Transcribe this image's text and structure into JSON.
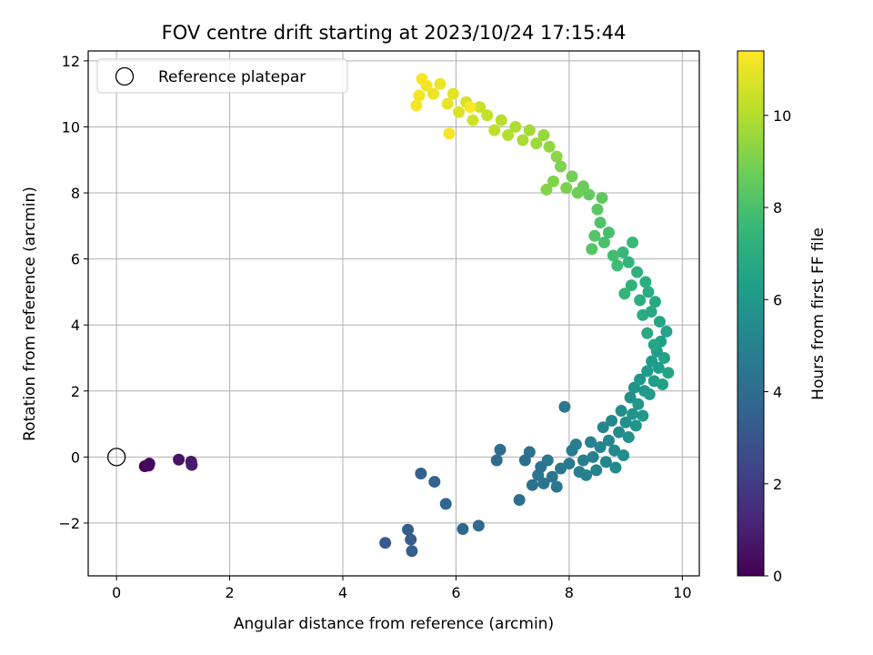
{
  "chart_data": {
    "type": "scatter",
    "title": "FOV centre drift starting at 2023/10/24 17:15:44",
    "xlabel": "Angular distance from reference (arcmin)",
    "ylabel": "Rotation from reference (arcmin)",
    "xlim": [
      -0.5,
      10.3
    ],
    "ylim": [
      -3.6,
      12.3
    ],
    "xticks": [
      0,
      2,
      4,
      6,
      8,
      10
    ],
    "yticks": [
      -2,
      0,
      2,
      4,
      6,
      8,
      10,
      12
    ],
    "grid": true,
    "legend": {
      "placement": "top-left",
      "entries": [
        "Reference platepar"
      ]
    },
    "reference_point": {
      "x": 0,
      "y": 0
    },
    "colorbar": {
      "label": "Hours from first FF file",
      "range": [
        0,
        11.4
      ],
      "ticks": [
        0,
        2,
        4,
        6,
        8,
        10
      ],
      "colormap": [
        "#440154",
        "#482878",
        "#3e4989",
        "#31688e",
        "#26828e",
        "#1f9e89",
        "#35b779",
        "#6ece58",
        "#b5de2b",
        "#fde725"
      ]
    },
    "points": [
      {
        "x": 0.5,
        "y": -0.28,
        "t": 0.1
      },
      {
        "x": 0.58,
        "y": -0.2,
        "t": 0.2
      },
      {
        "x": 0.57,
        "y": -0.26,
        "t": 0.3
      },
      {
        "x": 1.1,
        "y": -0.08,
        "t": 0.6
      },
      {
        "x": 1.32,
        "y": -0.14,
        "t": 0.8
      },
      {
        "x": 1.33,
        "y": -0.24,
        "t": 0.9
      },
      {
        "x": 4.75,
        "y": -2.6,
        "t": 3.2
      },
      {
        "x": 5.15,
        "y": -2.2,
        "t": 3.3
      },
      {
        "x": 5.2,
        "y": -2.5,
        "t": 3.35
      },
      {
        "x": 5.22,
        "y": -2.85,
        "t": 3.4
      },
      {
        "x": 5.38,
        "y": -0.5,
        "t": 3.5
      },
      {
        "x": 5.62,
        "y": -0.75,
        "t": 3.6
      },
      {
        "x": 5.82,
        "y": -1.42,
        "t": 3.7
      },
      {
        "x": 6.12,
        "y": -2.18,
        "t": 3.8
      },
      {
        "x": 6.4,
        "y": -2.08,
        "t": 3.9
      },
      {
        "x": 6.72,
        "y": -0.1,
        "t": 4.0
      },
      {
        "x": 6.78,
        "y": 0.22,
        "t": 4.05
      },
      {
        "x": 7.12,
        "y": -1.3,
        "t": 4.1
      },
      {
        "x": 7.22,
        "y": -0.1,
        "t": 4.15
      },
      {
        "x": 7.3,
        "y": 0.15,
        "t": 4.2
      },
      {
        "x": 7.35,
        "y": -0.85,
        "t": 4.25
      },
      {
        "x": 7.45,
        "y": -0.55,
        "t": 4.3
      },
      {
        "x": 7.5,
        "y": -0.3,
        "t": 4.35
      },
      {
        "x": 7.55,
        "y": -0.8,
        "t": 4.4
      },
      {
        "x": 7.62,
        "y": -0.1,
        "t": 4.45
      },
      {
        "x": 7.7,
        "y": -0.6,
        "t": 4.5
      },
      {
        "x": 7.78,
        "y": -0.9,
        "t": 4.55
      },
      {
        "x": 7.85,
        "y": -0.35,
        "t": 4.6
      },
      {
        "x": 7.92,
        "y": 1.52,
        "t": 4.65
      },
      {
        "x": 8.0,
        "y": -0.2,
        "t": 4.7
      },
      {
        "x": 8.05,
        "y": 0.2,
        "t": 4.75
      },
      {
        "x": 8.12,
        "y": 0.38,
        "t": 4.8
      },
      {
        "x": 8.18,
        "y": -0.45,
        "t": 4.85
      },
      {
        "x": 8.25,
        "y": -0.1,
        "t": 4.9
      },
      {
        "x": 8.3,
        "y": -0.55,
        "t": 4.95
      },
      {
        "x": 8.38,
        "y": 0.45,
        "t": 5.0
      },
      {
        "x": 8.42,
        "y": 0.0,
        "t": 5.05
      },
      {
        "x": 8.48,
        "y": -0.4,
        "t": 5.1
      },
      {
        "x": 8.55,
        "y": 0.3,
        "t": 5.15
      },
      {
        "x": 8.6,
        "y": 0.9,
        "t": 5.2
      },
      {
        "x": 8.65,
        "y": -0.15,
        "t": 5.25
      },
      {
        "x": 8.7,
        "y": 0.5,
        "t": 5.3
      },
      {
        "x": 8.75,
        "y": 1.1,
        "t": 5.35
      },
      {
        "x": 8.8,
        "y": 0.2,
        "t": 5.4
      },
      {
        "x": 8.82,
        "y": -0.32,
        "t": 5.45
      },
      {
        "x": 8.88,
        "y": 0.75,
        "t": 5.5
      },
      {
        "x": 8.92,
        "y": 1.4,
        "t": 5.55
      },
      {
        "x": 8.96,
        "y": 0.05,
        "t": 5.6
      },
      {
        "x": 9.0,
        "y": 1.05,
        "t": 5.65
      },
      {
        "x": 9.05,
        "y": 0.6,
        "t": 5.7
      },
      {
        "x": 9.08,
        "y": 1.8,
        "t": 5.75
      },
      {
        "x": 9.12,
        "y": 1.3,
        "t": 5.8
      },
      {
        "x": 9.15,
        "y": 2.1,
        "t": 5.85
      },
      {
        "x": 9.18,
        "y": 0.95,
        "t": 5.9
      },
      {
        "x": 9.22,
        "y": 1.6,
        "t": 5.95
      },
      {
        "x": 9.25,
        "y": 2.35,
        "t": 6.0
      },
      {
        "x": 9.3,
        "y": 1.25,
        "t": 6.05
      },
      {
        "x": 9.33,
        "y": 2.0,
        "t": 6.1
      },
      {
        "x": 9.38,
        "y": 2.6,
        "t": 6.15
      },
      {
        "x": 9.42,
        "y": 1.9,
        "t": 6.2
      },
      {
        "x": 9.46,
        "y": 2.9,
        "t": 6.25
      },
      {
        "x": 9.5,
        "y": 2.3,
        "t": 6.3
      },
      {
        "x": 9.55,
        "y": 3.2,
        "t": 6.35
      },
      {
        "x": 9.58,
        "y": 2.7,
        "t": 6.4
      },
      {
        "x": 9.62,
        "y": 3.5,
        "t": 6.45
      },
      {
        "x": 9.65,
        "y": 2.2,
        "t": 6.5
      },
      {
        "x": 9.68,
        "y": 3.0,
        "t": 6.55
      },
      {
        "x": 9.72,
        "y": 3.8,
        "t": 6.6
      },
      {
        "x": 9.75,
        "y": 2.55,
        "t": 6.65
      },
      {
        "x": 9.6,
        "y": 4.1,
        "t": 6.7
      },
      {
        "x": 9.5,
        "y": 3.4,
        "t": 6.75
      },
      {
        "x": 9.45,
        "y": 4.4,
        "t": 6.8
      },
      {
        "x": 9.38,
        "y": 3.75,
        "t": 6.85
      },
      {
        "x": 9.52,
        "y": 4.7,
        "t": 6.9
      },
      {
        "x": 9.4,
        "y": 5.0,
        "t": 7.0
      },
      {
        "x": 9.3,
        "y": 4.3,
        "t": 7.05
      },
      {
        "x": 9.35,
        "y": 5.3,
        "t": 7.1
      },
      {
        "x": 9.25,
        "y": 4.75,
        "t": 7.15
      },
      {
        "x": 9.2,
        "y": 5.6,
        "t": 7.25
      },
      {
        "x": 9.1,
        "y": 5.2,
        "t": 7.35
      },
      {
        "x": 9.05,
        "y": 5.9,
        "t": 7.45
      },
      {
        "x": 8.98,
        "y": 4.95,
        "t": 7.5
      },
      {
        "x": 8.95,
        "y": 6.2,
        "t": 7.6
      },
      {
        "x": 9.12,
        "y": 6.5,
        "t": 7.7
      },
      {
        "x": 8.85,
        "y": 5.8,
        "t": 7.8
      },
      {
        "x": 8.78,
        "y": 6.1,
        "t": 7.9
      },
      {
        "x": 8.7,
        "y": 6.8,
        "t": 8.0
      },
      {
        "x": 8.62,
        "y": 6.5,
        "t": 8.1
      },
      {
        "x": 8.55,
        "y": 7.1,
        "t": 8.2
      },
      {
        "x": 8.45,
        "y": 6.7,
        "t": 8.3
      },
      {
        "x": 8.4,
        "y": 6.3,
        "t": 8.35
      },
      {
        "x": 8.5,
        "y": 7.5,
        "t": 8.45
      },
      {
        "x": 8.58,
        "y": 7.85,
        "t": 8.55
      },
      {
        "x": 8.35,
        "y": 7.95,
        "t": 8.65
      },
      {
        "x": 8.25,
        "y": 8.2,
        "t": 8.75
      },
      {
        "x": 8.15,
        "y": 8.0,
        "t": 8.85
      },
      {
        "x": 8.05,
        "y": 8.5,
        "t": 8.95
      },
      {
        "x": 7.95,
        "y": 8.15,
        "t": 9.05
      },
      {
        "x": 7.85,
        "y": 8.8,
        "t": 9.15
      },
      {
        "x": 7.72,
        "y": 8.35,
        "t": 9.25
      },
      {
        "x": 7.6,
        "y": 8.1,
        "t": 9.3
      },
      {
        "x": 7.78,
        "y": 9.1,
        "t": 9.4
      },
      {
        "x": 7.65,
        "y": 9.4,
        "t": 9.5
      },
      {
        "x": 7.55,
        "y": 9.75,
        "t": 9.6
      },
      {
        "x": 7.42,
        "y": 9.5,
        "t": 9.7
      },
      {
        "x": 7.3,
        "y": 9.9,
        "t": 9.8
      },
      {
        "x": 7.18,
        "y": 9.6,
        "t": 9.9
      },
      {
        "x": 7.05,
        "y": 10.0,
        "t": 10.0
      },
      {
        "x": 6.92,
        "y": 9.75,
        "t": 10.1
      },
      {
        "x": 6.8,
        "y": 10.2,
        "t": 10.2
      },
      {
        "x": 6.68,
        "y": 9.9,
        "t": 10.3
      },
      {
        "x": 6.55,
        "y": 10.35,
        "t": 10.4
      },
      {
        "x": 6.42,
        "y": 10.6,
        "t": 10.5
      },
      {
        "x": 6.3,
        "y": 10.2,
        "t": 10.6
      },
      {
        "x": 6.18,
        "y": 10.75,
        "t": 10.7
      },
      {
        "x": 6.05,
        "y": 10.45,
        "t": 10.8
      },
      {
        "x": 5.95,
        "y": 11.0,
        "t": 10.9
      },
      {
        "x": 5.85,
        "y": 10.7,
        "t": 11.0
      },
      {
        "x": 5.72,
        "y": 11.3,
        "t": 11.05
      },
      {
        "x": 5.6,
        "y": 11.0,
        "t": 11.1
      },
      {
        "x": 5.48,
        "y": 11.25,
        "t": 11.15
      },
      {
        "x": 5.35,
        "y": 10.95,
        "t": 11.2
      },
      {
        "x": 5.3,
        "y": 10.65,
        "t": 11.25
      },
      {
        "x": 5.4,
        "y": 11.45,
        "t": 11.3
      },
      {
        "x": 5.88,
        "y": 9.8,
        "t": 11.3
      },
      {
        "x": 6.25,
        "y": 10.6,
        "t": 11.35
      }
    ]
  }
}
